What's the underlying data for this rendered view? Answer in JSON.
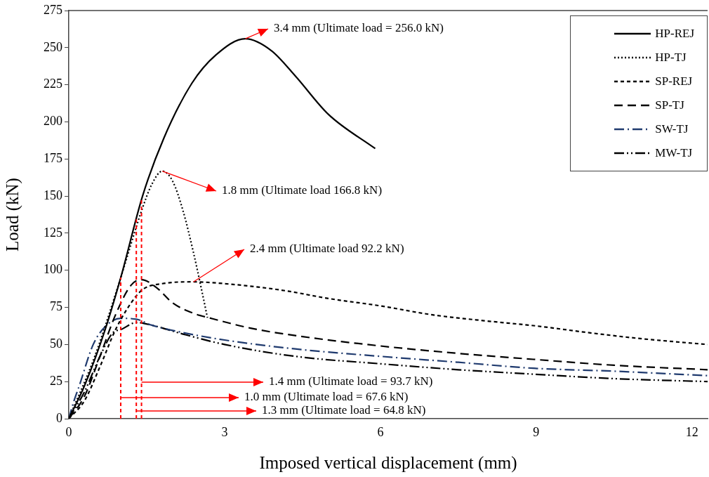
{
  "chart_data": {
    "type": "line",
    "xlabel": "Imposed vertical displacement (mm)",
    "ylabel": "Load (kN)",
    "xlim": [
      0,
      12.3
    ],
    "xticks": [
      0,
      3,
      6,
      9,
      12
    ],
    "ylim": [
      0,
      275
    ],
    "yticks": [
      0,
      25,
      50,
      75,
      100,
      125,
      150,
      175,
      200,
      225,
      250,
      275
    ],
    "grid": false,
    "legend": "top right",
    "marker": "none",
    "series": [
      {
        "name": "HP-REJ",
        "color": "#000000",
        "line_style": "solid",
        "x": [
          0,
          0.3,
          0.7,
          1.0,
          1.42,
          1.83,
          2.37,
          2.83,
          3.4,
          3.9,
          4.36,
          5.0,
          5.9
        ],
        "values": [
          0,
          22,
          60,
          95,
          150,
          189,
          226,
          245,
          256,
          248,
          231,
          205,
          182
        ]
      },
      {
        "name": "HP-TJ",
        "color": "#000000",
        "line_style": "dotted",
        "x": [
          0,
          0.5,
          1.0,
          1.4,
          1.6,
          1.8,
          2.0,
          2.2,
          2.4,
          2.55,
          2.67
        ],
        "values": [
          0,
          42,
          95,
          140,
          158,
          166.8,
          160,
          140,
          112,
          88,
          68
        ]
      },
      {
        "name": "SP-REJ",
        "color": "#000000",
        "line_style": "dashed",
        "x": [
          0,
          0.3,
          0.6,
          0.9,
          1.2,
          1.42,
          1.8,
          2.4,
          3.0,
          4.1,
          5,
          6,
          7,
          8,
          9,
          10,
          11,
          12.3
        ],
        "values": [
          0,
          12,
          35,
          60,
          78,
          87,
          91,
          92.2,
          91,
          86.6,
          81,
          76,
          70,
          66,
          62.5,
          58,
          54,
          50
        ]
      },
      {
        "name": "SP-TJ",
        "color": "#000000",
        "line_style": "longdash",
        "x": [
          0,
          0.3,
          0.6,
          0.9,
          1.2,
          1.4,
          1.7,
          2.0,
          2.4,
          2.7,
          3.5,
          4.36,
          6,
          7.5,
          8.94,
          10.5,
          12.3
        ],
        "values": [
          0,
          15,
          42,
          70,
          90,
          93.7,
          88,
          78,
          71,
          68,
          61,
          56,
          49,
          44,
          40,
          36,
          33
        ]
      },
      {
        "name": "SW-TJ",
        "color": "#1f3a6e",
        "line_style": "dashdot",
        "x": [
          0,
          0.1,
          0.2,
          0.47,
          0.7,
          1.0,
          1.3,
          1.6,
          2.2,
          3,
          4.36,
          6,
          7.5,
          8.94,
          10.5,
          12.3
        ],
        "values": [
          0,
          12,
          22,
          50,
          62,
          67.6,
          67,
          63,
          58,
          53,
          47,
          42,
          38,
          34,
          32,
          29
        ]
      },
      {
        "name": "MW-TJ",
        "color": "#000000",
        "line_style": "dashdotdot",
        "x": [
          0,
          0.3,
          0.6,
          0.85,
          1.0,
          1.3,
          1.6,
          2.2,
          3,
          4.36,
          6,
          7.5,
          8.94,
          10.5,
          12.3
        ],
        "values": [
          0,
          18,
          42,
          58,
          60,
          64.8,
          63,
          57,
          50,
          42,
          37,
          33,
          30,
          27,
          25
        ]
      }
    ],
    "annotations": [
      {
        "text": "3.4 mm (Ultimate load = 256.0 kN)",
        "x": 3.4,
        "y": 256
      },
      {
        "text": "1.8 mm (Ultimate load 166.8 kN)",
        "x": 1.8,
        "y": 166.8
      },
      {
        "text": "2.4 mm (Ultimate load 92.2 kN)",
        "x": 2.4,
        "y": 92.2
      },
      "1.4 mm (Ultimate load = 93.7 kN)",
      "1.0 mm (Ultimate load = 67.6 kN)",
      "1.3 mm (Ultimate load = 64.8 kN)"
    ],
    "ref_lines": [
      {
        "axis": "x",
        "value": 1.4,
        "color": "#ff0000",
        "line_style": "dashed"
      },
      {
        "axis": "x",
        "value": 1.0,
        "color": "#ff0000",
        "line_style": "dashed"
      },
      {
        "axis": "x",
        "value": 1.3,
        "color": "#ff0000",
        "line_style": "dashed"
      }
    ]
  }
}
